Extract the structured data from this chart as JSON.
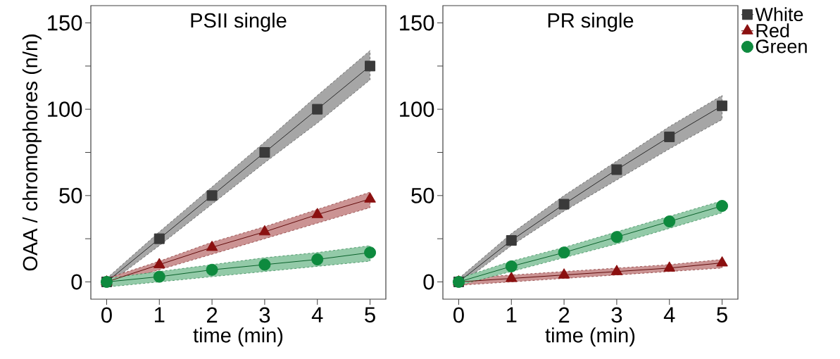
{
  "chart_data": [
    {
      "type": "line",
      "title": "PSII single",
      "xlabel": "time (min)",
      "ylabel": "OAA / chromophores (n/n)",
      "x": [
        0,
        1,
        2,
        3,
        4,
        5
      ],
      "xlim": [
        -0.3,
        5.3
      ],
      "xticks": [
        0,
        1,
        2,
        3,
        4,
        5
      ],
      "ylim": [
        -10,
        160
      ],
      "yticks": [
        0,
        {
          "value": 25,
          "label": null
        },
        50,
        {
          "value": 75,
          "label": null
        },
        100,
        {
          "value": 125,
          "label": null
        },
        150
      ],
      "legend": false,
      "grid": false,
      "series": [
        {
          "color": "#3a3a3a",
          "marker": "square",
          "values": [
            0,
            25,
            50,
            75,
            100,
            125
          ],
          "lower": [
            -2,
            21,
            45,
            69,
            92,
            117
          ],
          "upper": [
            2,
            29,
            55,
            81,
            108,
            134
          ]
        },
        {
          "color": "#8b1010",
          "marker": "triangle",
          "values": [
            0,
            10,
            20,
            29,
            39,
            48
          ],
          "lower": [
            -2,
            7,
            16,
            25,
            34,
            43
          ],
          "upper": [
            2,
            12,
            23,
            32,
            42,
            52
          ]
        },
        {
          "color": "#0e8a3e",
          "marker": "circle",
          "values": [
            0,
            3,
            7,
            10,
            13,
            17
          ],
          "lower": [
            -3,
            0,
            3,
            6,
            9,
            12
          ],
          "upper": [
            2,
            6,
            10,
            14,
            17,
            21
          ]
        }
      ]
    },
    {
      "type": "line",
      "title": "PR single",
      "xlabel": "time (min)",
      "x": [
        0,
        1,
        2,
        3,
        4,
        5
      ],
      "xlim": [
        -0.3,
        5.3
      ],
      "xticks": [
        0,
        1,
        2,
        3,
        4,
        5
      ],
      "ylim": [
        -10,
        160
      ],
      "yticks": [
        0,
        {
          "value": 25,
          "label": null
        },
        50,
        {
          "value": 75,
          "label": null
        },
        100,
        {
          "value": 125,
          "label": null
        },
        150
      ],
      "legend": "top right",
      "grid": false,
      "series": [
        {
          "name": "White",
          "color": "#3a3a3a",
          "marker": "square",
          "values": [
            0,
            24,
            45,
            65,
            84,
            102
          ],
          "lower": [
            -2,
            21,
            41,
            59,
            77,
            94
          ],
          "upper": [
            2,
            28,
            50,
            70,
            90,
            108
          ]
        },
        {
          "name": "Red",
          "color": "#8b1010",
          "marker": "triangle",
          "values": [
            0,
            2,
            4,
            6,
            8,
            11
          ],
          "lower": [
            -2,
            0,
            2,
            4,
            6,
            8
          ],
          "upper": [
            2,
            4,
            6,
            8,
            10,
            13
          ]
        },
        {
          "name": "Green",
          "color": "#0e8a3e",
          "marker": "circle",
          "values": [
            0,
            9,
            17,
            26,
            35,
            44
          ],
          "lower": [
            -2,
            6,
            14,
            22,
            31,
            40
          ],
          "upper": [
            2,
            12,
            20,
            29,
            38,
            47
          ]
        }
      ]
    }
  ]
}
